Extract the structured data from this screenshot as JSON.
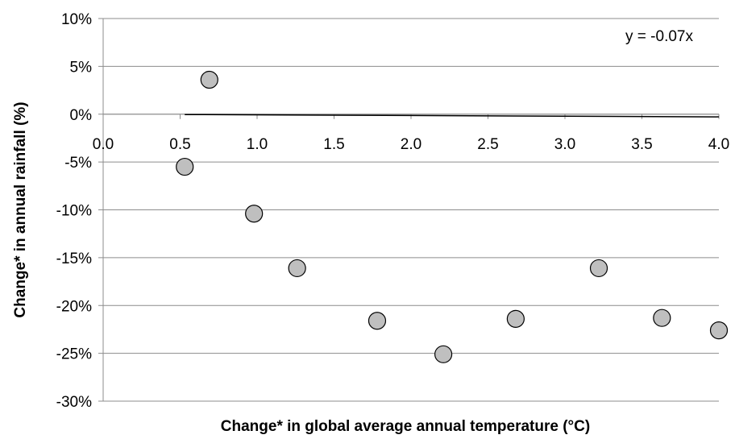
{
  "chart_data": {
    "type": "scatter",
    "title": "",
    "xlabel": "Change* in global average annual temperature (°C)",
    "ylabel": "Change* in annual rainfall (%)",
    "xlim": [
      0,
      4
    ],
    "ylim": [
      -30,
      10
    ],
    "x_ticks": [
      "0.0",
      "0.5",
      "1.0",
      "1.5",
      "2.0",
      "2.5",
      "3.0",
      "3.5",
      "4.0"
    ],
    "y_ticks": [
      "10%",
      "5%",
      "0%",
      "-5%",
      "-10%",
      "-15%",
      "-20%",
      "-25%",
      "-30%"
    ],
    "grid": true,
    "points": [
      {
        "x": 0.53,
        "y": -5.5
      },
      {
        "x": 0.69,
        "y": 3.6
      },
      {
        "x": 0.98,
        "y": -10.4
      },
      {
        "x": 1.26,
        "y": -16.1
      },
      {
        "x": 1.78,
        "y": -21.6
      },
      {
        "x": 2.21,
        "y": -25.1
      },
      {
        "x": 2.68,
        "y": -21.4
      },
      {
        "x": 3.22,
        "y": -16.1
      },
      {
        "x": 3.63,
        "y": -21.3
      },
      {
        "x": 4.0,
        "y": -22.6
      }
    ],
    "trendline": {
      "slope": -0.07,
      "intercept": 0,
      "x_range": [
        0.53,
        4.0
      ],
      "equation": "y = -0.07x"
    },
    "marker_fill": "#bfbfbf",
    "marker_stroke": "#000000",
    "line_color": "#000000",
    "grid_color": "#8c8c8c"
  }
}
